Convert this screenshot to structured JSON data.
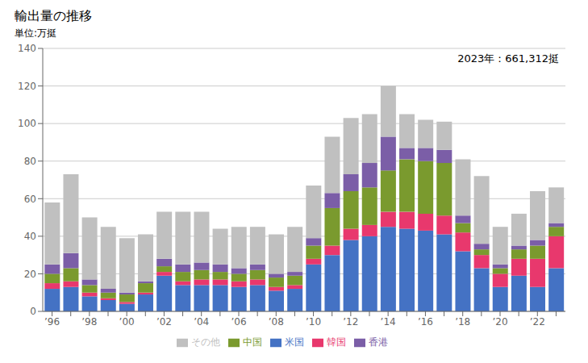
{
  "chart_data": {
    "type": "bar",
    "title": "輸出量の推移",
    "ylabel": "単位:万挺",
    "annotation": "2023年：661,312挺",
    "stacked": true,
    "grid": true,
    "legend": "bottom",
    "categories": [
      "’96",
      null,
      "’98",
      null,
      "’00",
      null,
      "’02",
      null,
      "’04",
      null,
      "’06",
      null,
      "’08",
      null,
      "’10",
      null,
      "’12",
      null,
      "’14",
      null,
      "’16",
      null,
      "’18",
      null,
      "’20",
      null,
      "’22",
      null
    ],
    "series": [
      {
        "name": "米国",
        "color": "#4472c4",
        "values": [
          12,
          13,
          8,
          6,
          4,
          9,
          19,
          14,
          14,
          14,
          13,
          14,
          11,
          12,
          25,
          30,
          38,
          40,
          45,
          44,
          43,
          41,
          32,
          23,
          13,
          19,
          13,
          23
        ]
      },
      {
        "name": "韓国",
        "color": "#e8386d",
        "values": [
          3,
          3,
          2,
          1,
          1,
          1,
          2,
          2,
          3,
          3,
          3,
          3,
          2,
          2,
          3,
          5,
          6,
          6,
          8,
          9,
          9,
          10,
          10,
          7,
          7,
          9,
          15,
          17
        ]
      },
      {
        "name": "中国",
        "color": "#7a9a2e",
        "values": [
          5,
          7,
          4,
          3,
          4,
          5,
          3,
          5,
          5,
          4,
          4,
          5,
          5,
          5,
          7,
          20,
          20,
          20,
          22,
          28,
          28,
          28,
          5,
          3,
          3,
          5,
          7,
          5
        ]
      },
      {
        "name": "香港",
        "color": "#7b5ea7",
        "values": [
          5,
          8,
          3,
          2,
          1,
          1,
          4,
          4,
          4,
          4,
          3,
          3,
          2,
          2,
          4,
          8,
          9,
          13,
          18,
          6,
          7,
          7,
          4,
          3,
          2,
          2,
          3,
          2
        ]
      },
      {
        "name": "その他",
        "color": "#c0c0c0",
        "values": [
          33,
          42,
          33,
          33,
          29,
          25,
          25,
          28,
          27,
          19,
          22,
          20,
          21,
          24,
          28,
          30,
          30,
          26,
          27,
          18,
          15,
          15,
          30,
          36,
          20,
          17,
          26,
          19
        ]
      }
    ],
    "ylim": [
      0,
      140
    ],
    "yticks": [
      0,
      20,
      40,
      60,
      80,
      100,
      120,
      140
    ]
  }
}
